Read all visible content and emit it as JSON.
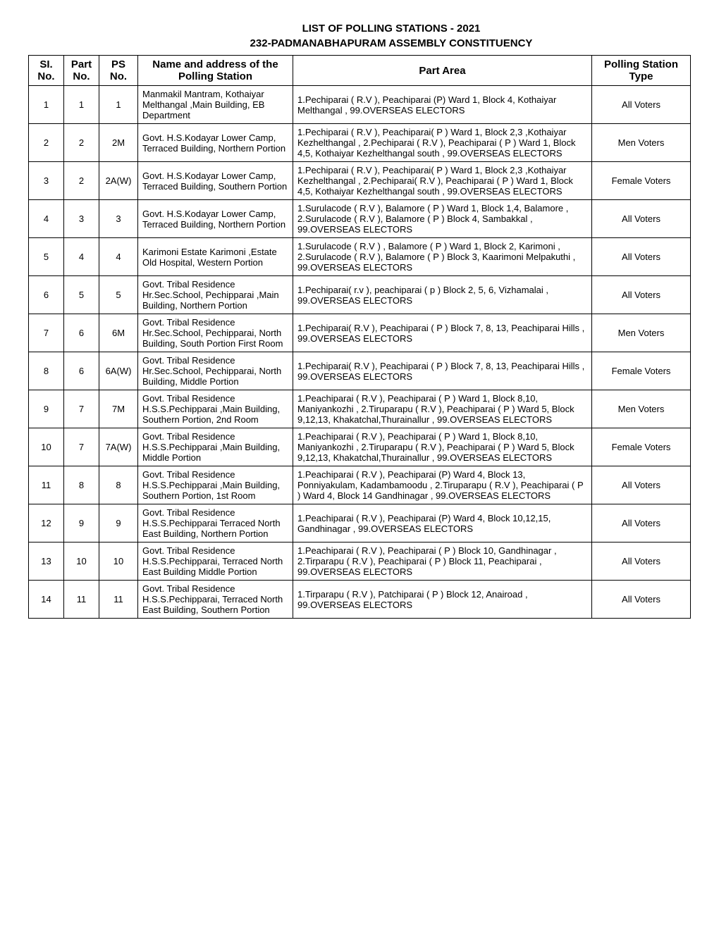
{
  "title_line1": "LIST OF POLLING STATIONS - 2021",
  "title_line2": "232-PADMANABHAPURAM ASSEMBLY CONSTITUENCY",
  "columns": {
    "sl": "SI. No.",
    "part": "Part No.",
    "ps": "PS No.",
    "name": "Name and address of the Polling Station",
    "area": "Part Area",
    "type": "Polling Station Type"
  },
  "rows": [
    {
      "sl": "1",
      "part": "1",
      "ps": "1",
      "name": "Manmakil Mantram, Kothaiyar Melthangal ,Main Building, EB Department",
      "area": "1.Pechiparai ( R.V ), Peachiparai (P) Ward 1, Block 4, Kothaiyar Melthangal , 99.OVERSEAS ELECTORS",
      "type": "All Voters"
    },
    {
      "sl": "2",
      "part": "2",
      "ps": "2M",
      "name": "Govt. H.S.Kodayar Lower Camp, Terraced Building, Northern Portion",
      "area": "1.Pechiparai ( R.V ), Peachiparai( P ) Ward 1, Block 2,3 ,Kothaiyar Kezhelthangal , 2.Pechiparai ( R.V ), Peachiparai ( P ) Ward 1, Block 4,5, Kothaiyar Kezhelthangal south , 99.OVERSEAS ELECTORS",
      "type": "Men Voters"
    },
    {
      "sl": "3",
      "part": "2",
      "ps": "2A(W)",
      "name": "Govt. H.S.Kodayar Lower Camp, Terraced Building, Southern Portion",
      "area": "1.Pechiparai ( R.V ), Peachiparai( P ) Ward 1, Block 2,3 ,Kothaiyar Kezhelthangal , 2.Pechiparai( R.V ), Peachiparai ( P ) Ward 1, Block 4,5, Kothaiyar Kezhelthangal south , 99.OVERSEAS ELECTORS",
      "type": "Female Voters"
    },
    {
      "sl": "4",
      "part": "3",
      "ps": "3",
      "name": "Govt. H.S.Kodayar Lower Camp, Terraced Building, Northern Portion",
      "area": "1.Surulacode ( R.V ), Balamore ( P ) Ward 1, Block 1,4, Balamore , 2.Surulacode ( R.V ), Balamore ( P ) Block 4, Sambakkal , 99.OVERSEAS ELECTORS",
      "type": "All Voters"
    },
    {
      "sl": "5",
      "part": "4",
      "ps": "4",
      "name": "Karimoni Estate Karimoni ,Estate Old Hospital, Western Portion",
      "area": "1.Surulacode ( R.V ) , Balamore ( P ) Ward 1, Block 2, Karimoni , 2.Surulacode ( R.V ), Balamore ( P ) Block 3, Kaarimoni Melpakuthi , 99.OVERSEAS ELECTORS",
      "type": "All Voters"
    },
    {
      "sl": "6",
      "part": "5",
      "ps": "5",
      "name": "Govt. Tribal Residence Hr.Sec.School, Pechipparai ,Main Building, Northern Portion",
      "area": "1.Pechiparai( r.v ), peachiparai ( p ) Block 2, 5, 6, Vizhamalai , 99.OVERSEAS ELECTORS",
      "type": "All Voters"
    },
    {
      "sl": "7",
      "part": "6",
      "ps": "6M",
      "name": "Govt. Tribal Residence Hr.Sec.School, Pechipparai, North Building, South Portion First Room",
      "area": "1.Pechiparai( R.V ), Peachiparai ( P ) Block 7, 8, 13, Peachiparai Hills , 99.OVERSEAS ELECTORS",
      "type": "Men Voters"
    },
    {
      "sl": "8",
      "part": "6",
      "ps": "6A(W)",
      "name": "Govt. Tribal Residence Hr.Sec.School, Pechipparai, North Building, Middle Portion",
      "area": "1.Pechiparai( R.V ), Peachiparai ( P ) Block 7, 8, 13, Peachiparai Hills , 99.OVERSEAS ELECTORS",
      "type": "Female Voters"
    },
    {
      "sl": "9",
      "part": "7",
      "ps": "7M",
      "name": "Govt. Tribal Residence H.S.S.Pechipparai ,Main Building, Southern Portion, 2nd Room",
      "area": "1.Peachiparai ( R.V ), Peachiparai ( P ) Ward 1, Block 8,10, Maniyankozhi , 2.Tiruparapu ( R.V ), Peachiparai ( P ) Ward 5, Block 9,12,13, Khakatchal,Thurainallur , 99.OVERSEAS ELECTORS",
      "type": "Men Voters"
    },
    {
      "sl": "10",
      "part": "7",
      "ps": "7A(W)",
      "name": "Govt. Tribal Residence H.S.S.Pechipparai ,Main Building, Middle Portion",
      "area": "1.Peachiparai ( R.V ), Peachiparai ( P ) Ward 1, Block 8,10, Maniyankozhi , 2.Tiruparapu ( R.V ), Peachiparai ( P ) Ward 5, Block 9,12,13, Khakatchal,Thurainallur , 99.OVERSEAS ELECTORS",
      "type": "Female Voters"
    },
    {
      "sl": "11",
      "part": "8",
      "ps": "8",
      "name": "Govt. Tribal Residence H.S.S.Pechipparai ,Main Building, Southern Portion, 1st Room",
      "area": "1.Peachiparai ( R.V ), Peachiparai (P) Ward 4, Block 13, Ponniyakulam, Kadambamoodu , 2.Tiruparapu ( R.V ), Peachiparai ( P ) Ward 4, Block 14 Gandhinagar , 99.OVERSEAS ELECTORS",
      "type": "All Voters"
    },
    {
      "sl": "12",
      "part": "9",
      "ps": "9",
      "name": "Govt. Tribal Residence H.S.S.Pechipparai Terraced North East Building, Northern Portion",
      "area": "1.Peachiparai ( R.V ), Peachiparai (P) Ward 4, Block 10,12,15, Gandhinagar , 99.OVERSEAS ELECTORS",
      "type": "All Voters"
    },
    {
      "sl": "13",
      "part": "10",
      "ps": "10",
      "name": "Govt. Tribal Residence H.S.S.Pechipparai, Terraced North East Building Middle Portion",
      "area": "1.Peachiparai ( R.V ), Peachiparai ( P ) Block 10, Gandhinagar , 2.Tirparapu ( R.V ), Peachiparai ( P ) Block 11, Peachiparai , 99.OVERSEAS ELECTORS",
      "type": "All Voters"
    },
    {
      "sl": "14",
      "part": "11",
      "ps": "11",
      "name": "Govt. Tribal Residence H.S.S.Pechipparai, Terraced North East Building, Southern Portion",
      "area": "1.Tirparapu ( R.V ), Patchiparai ( P ) Block 12, Anairoad , 99.OVERSEAS ELECTORS",
      "type": "All Voters"
    }
  ]
}
